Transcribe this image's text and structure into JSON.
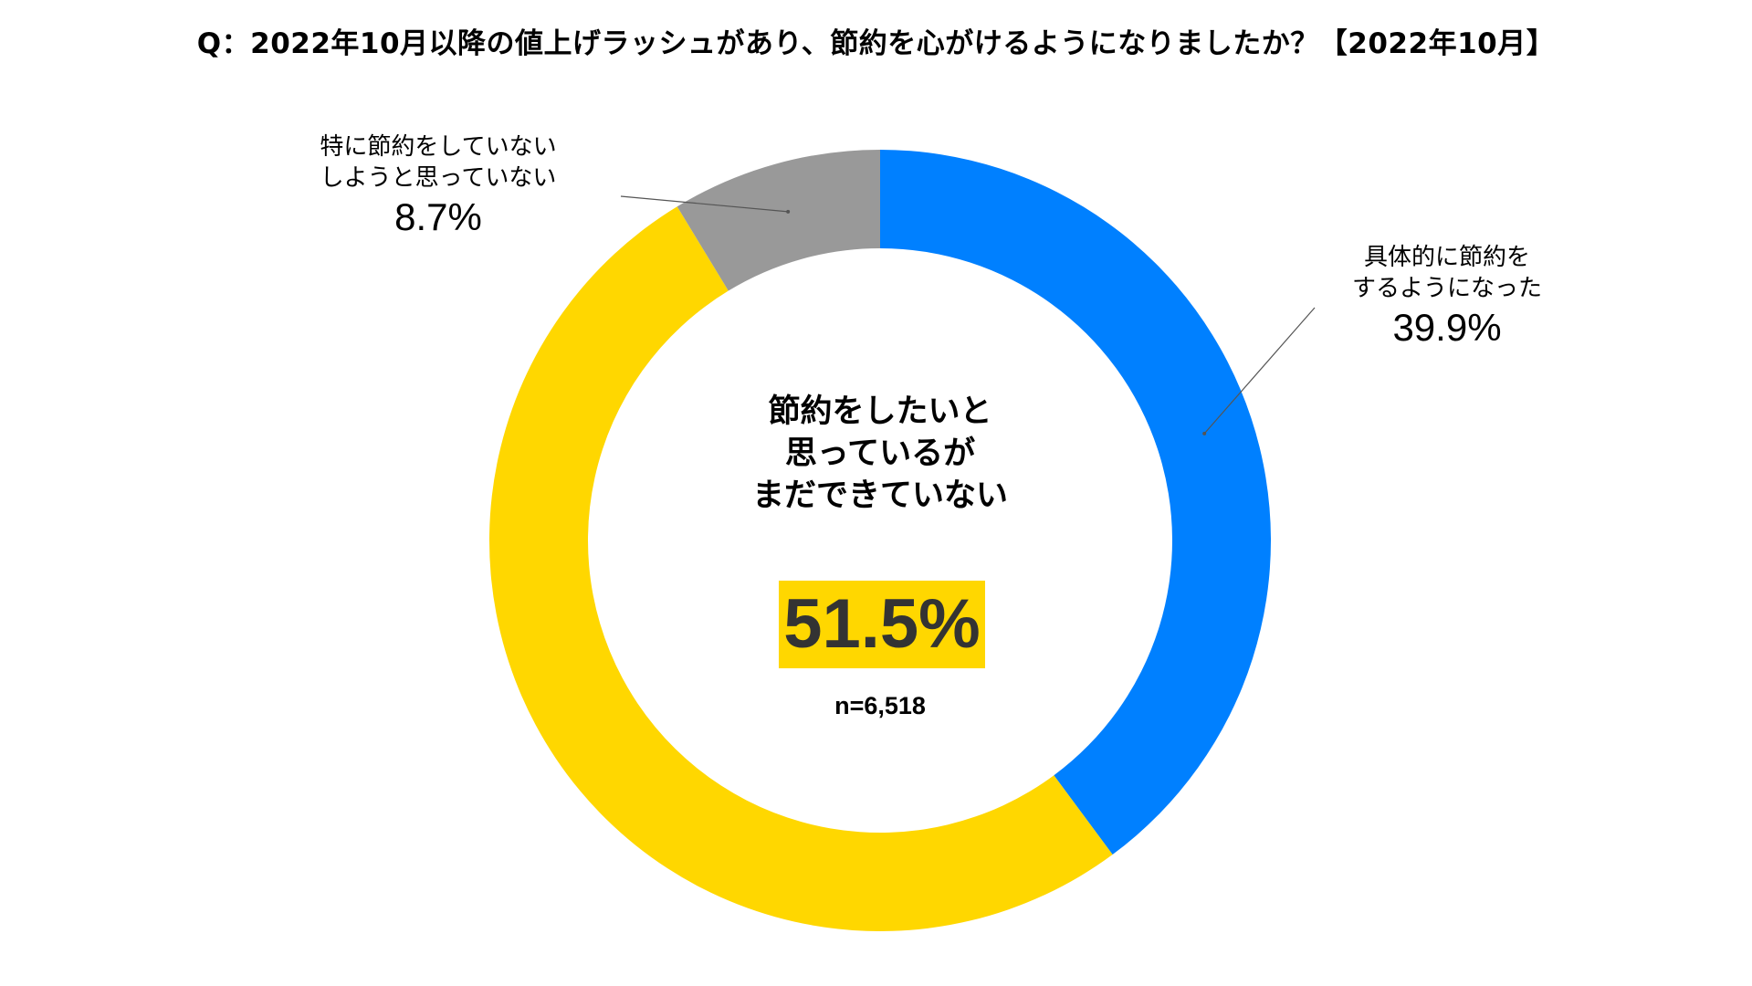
{
  "title": "Q：2022年10月以降の値上げラッシュがあり、節約を心がけるようになりましたか？【2022年10月】",
  "chart_data": {
    "type": "pie",
    "title": "Q：2022年10月以降の値上げラッシュがあり、節約を心がけるようになりましたか？【2022年10月】",
    "unit": "%",
    "sample_size": "n=6,518",
    "slices": [
      {
        "key": "done",
        "label_lines": [
          "具体的に節約を",
          "するようになった"
        ],
        "value": 39.9,
        "display": "39.9%",
        "color": "#0080FF"
      },
      {
        "key": "want",
        "label_lines": [
          "節約をしたいと",
          "思っているが",
          "まだできていない"
        ],
        "value": 51.5,
        "display": "51.5%",
        "color": "#FFD700"
      },
      {
        "key": "other",
        "label_lines": [
          "特に節約をしていない",
          "しようと思っていない"
        ],
        "value": 8.7,
        "display": "8.7%",
        "color": "#999999"
      }
    ]
  },
  "colors": {
    "highlight_bg": "#FFD700",
    "highlight_text": "#333333",
    "leader_line": "#555555"
  }
}
